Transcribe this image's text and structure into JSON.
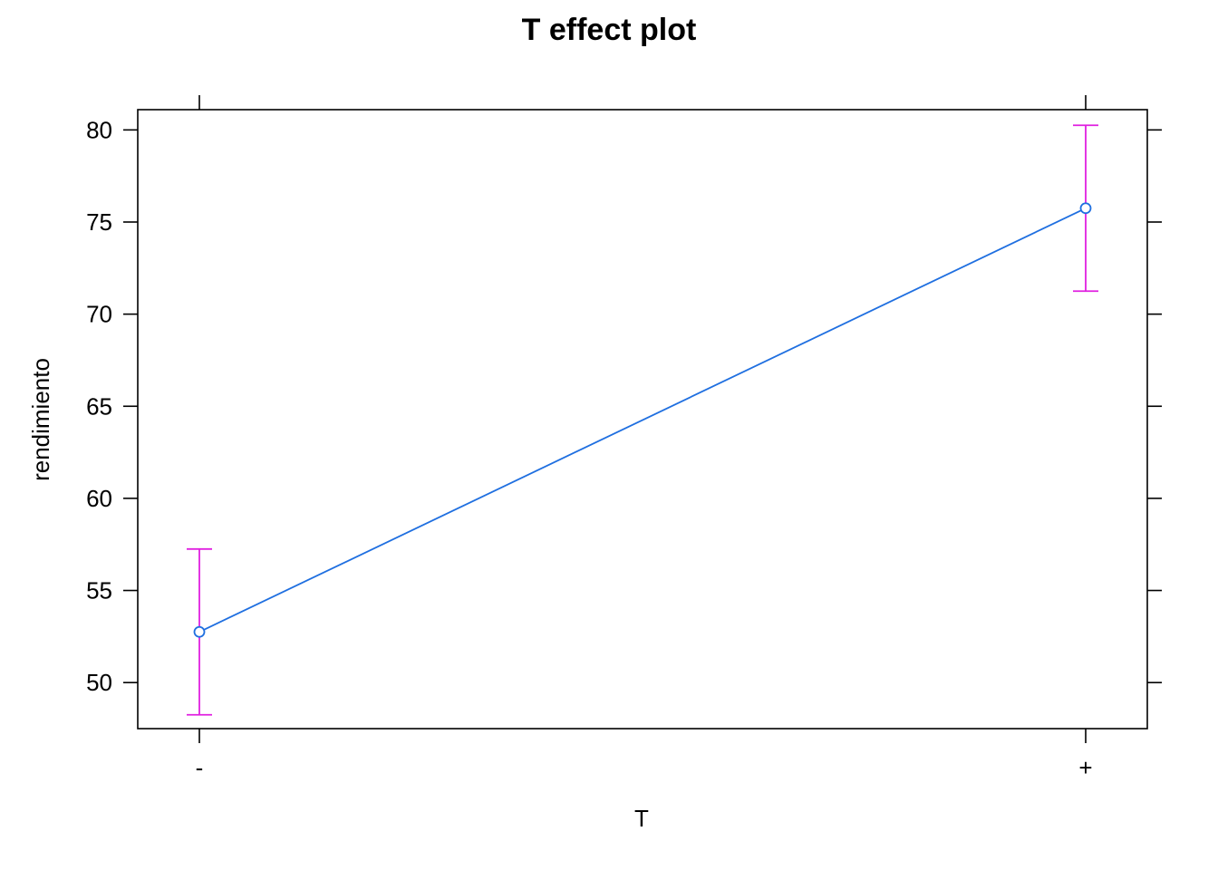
{
  "chart_data": {
    "type": "line",
    "title": "T effect plot",
    "xlabel": "T",
    "ylabel": "rendimiento",
    "categories": [
      "-",
      "+"
    ],
    "series": [
      {
        "values": [
          52.75,
          75.75
        ],
        "lower": [
          48.25,
          71.25
        ],
        "upper": [
          57.25,
          80.25
        ]
      }
    ],
    "y_ticks": [
      50,
      55,
      60,
      65,
      70,
      75,
      80
    ],
    "y_tick_labels": [
      "50",
      "55",
      "60",
      "65",
      "70",
      "75",
      "80"
    ],
    "ylim": [
      47.5,
      81.1
    ],
    "grid": false,
    "legend": "none",
    "colors": {
      "line": "#1f6fe0",
      "point": "#1f6fe0",
      "error_bar": "#e020e0",
      "frame": "#000000"
    }
  }
}
